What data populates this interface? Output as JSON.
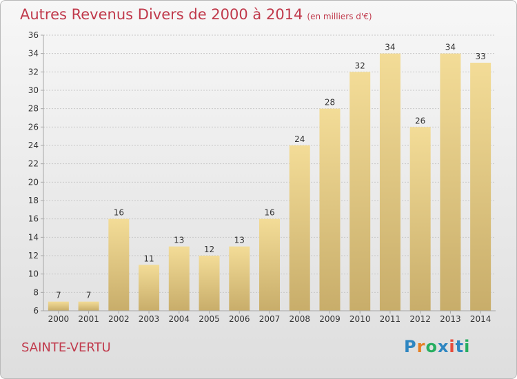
{
  "title": "Autres Revenus Divers de 2000 à 2014",
  "subtitle": "(en milliers d'€)",
  "place": "SAINTE-VERTU",
  "logo": {
    "letters": [
      "P",
      "r",
      "o",
      "x",
      "i",
      "t",
      "i"
    ],
    "colors": [
      "#2e86c1",
      "#e67e22",
      "#27ae60",
      "#2e86c1",
      "#e74c3c",
      "#2e86c1",
      "#27ae60"
    ]
  },
  "chart_data": {
    "type": "bar",
    "categories": [
      "2000",
      "2001",
      "2002",
      "2003",
      "2004",
      "2005",
      "2006",
      "2007",
      "2008",
      "2009",
      "2010",
      "2011",
      "2012",
      "2013",
      "2014"
    ],
    "values": [
      7,
      7,
      16,
      11,
      13,
      12,
      13,
      16,
      24,
      28,
      32,
      34,
      26,
      34,
      33
    ],
    "ylim": [
      6,
      36
    ],
    "yticks": [
      6,
      8,
      10,
      12,
      14,
      16,
      18,
      20,
      22,
      24,
      26,
      28,
      30,
      32,
      34,
      36
    ],
    "grid": true,
    "colors": {
      "bar_light": "#f3dc97",
      "bar_dark": "#c8ad6a",
      "grid": "#c8c8c8",
      "axis": "#a6a6a6",
      "text": "#333333"
    }
  }
}
